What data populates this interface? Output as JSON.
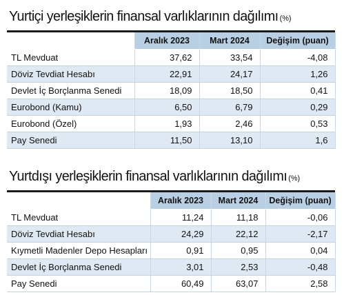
{
  "section1": {
    "title": "Yurtiçi yerleşiklerin finansal varlıklarının dağılımı",
    "unit": "(%)",
    "headers": [
      "",
      "Aralık 2023",
      "Mart 2024",
      "Değişim (puan)"
    ],
    "rows": [
      [
        "TL Mevduat",
        "37,62",
        "33,54",
        "-4,08"
      ],
      [
        "Döviz Tevdiat Hesabı",
        "22,91",
        "24,17",
        "1,26"
      ],
      [
        "Devlet İç Borçlanma Senedi",
        "18,09",
        "18,50",
        "0,41"
      ],
      [
        "Eurobond (Kamu)",
        "6,50",
        "6,79",
        "0,29"
      ],
      [
        "Eurobond (Özel)",
        "1,93",
        "2,46",
        "0,53"
      ],
      [
        "Pay Senedi",
        "11,50",
        "13,10",
        "1,6"
      ]
    ]
  },
  "section2": {
    "title": "Yurtdışı yerleşiklerin finansal varlıklarının dağılımı",
    "unit": "(%)",
    "headers": [
      "",
      "Aralık 2023",
      "Mart 2024",
      "Değişim (puan)"
    ],
    "rows": [
      [
        "TL Mevduat",
        "11,24",
        "11,18",
        "-0,06"
      ],
      [
        "Döviz Tevdiat Hesabı",
        "24,29",
        "22,12",
        "-2,17"
      ],
      [
        "Kıymetli Madenler Depo Hesapları",
        "0,91",
        "0,95",
        "0,04"
      ],
      [
        "Devlet İç Borçlanma Senedi",
        "3,01",
        "2,53",
        "-0,48"
      ],
      [
        "Pay Senedi",
        "60,49",
        "63,07",
        "2,58"
      ]
    ]
  },
  "colors": {
    "header_bg": "#b9cfe3",
    "stripe_bg": "#dfe9f3",
    "rule": "#1a1a1a"
  }
}
